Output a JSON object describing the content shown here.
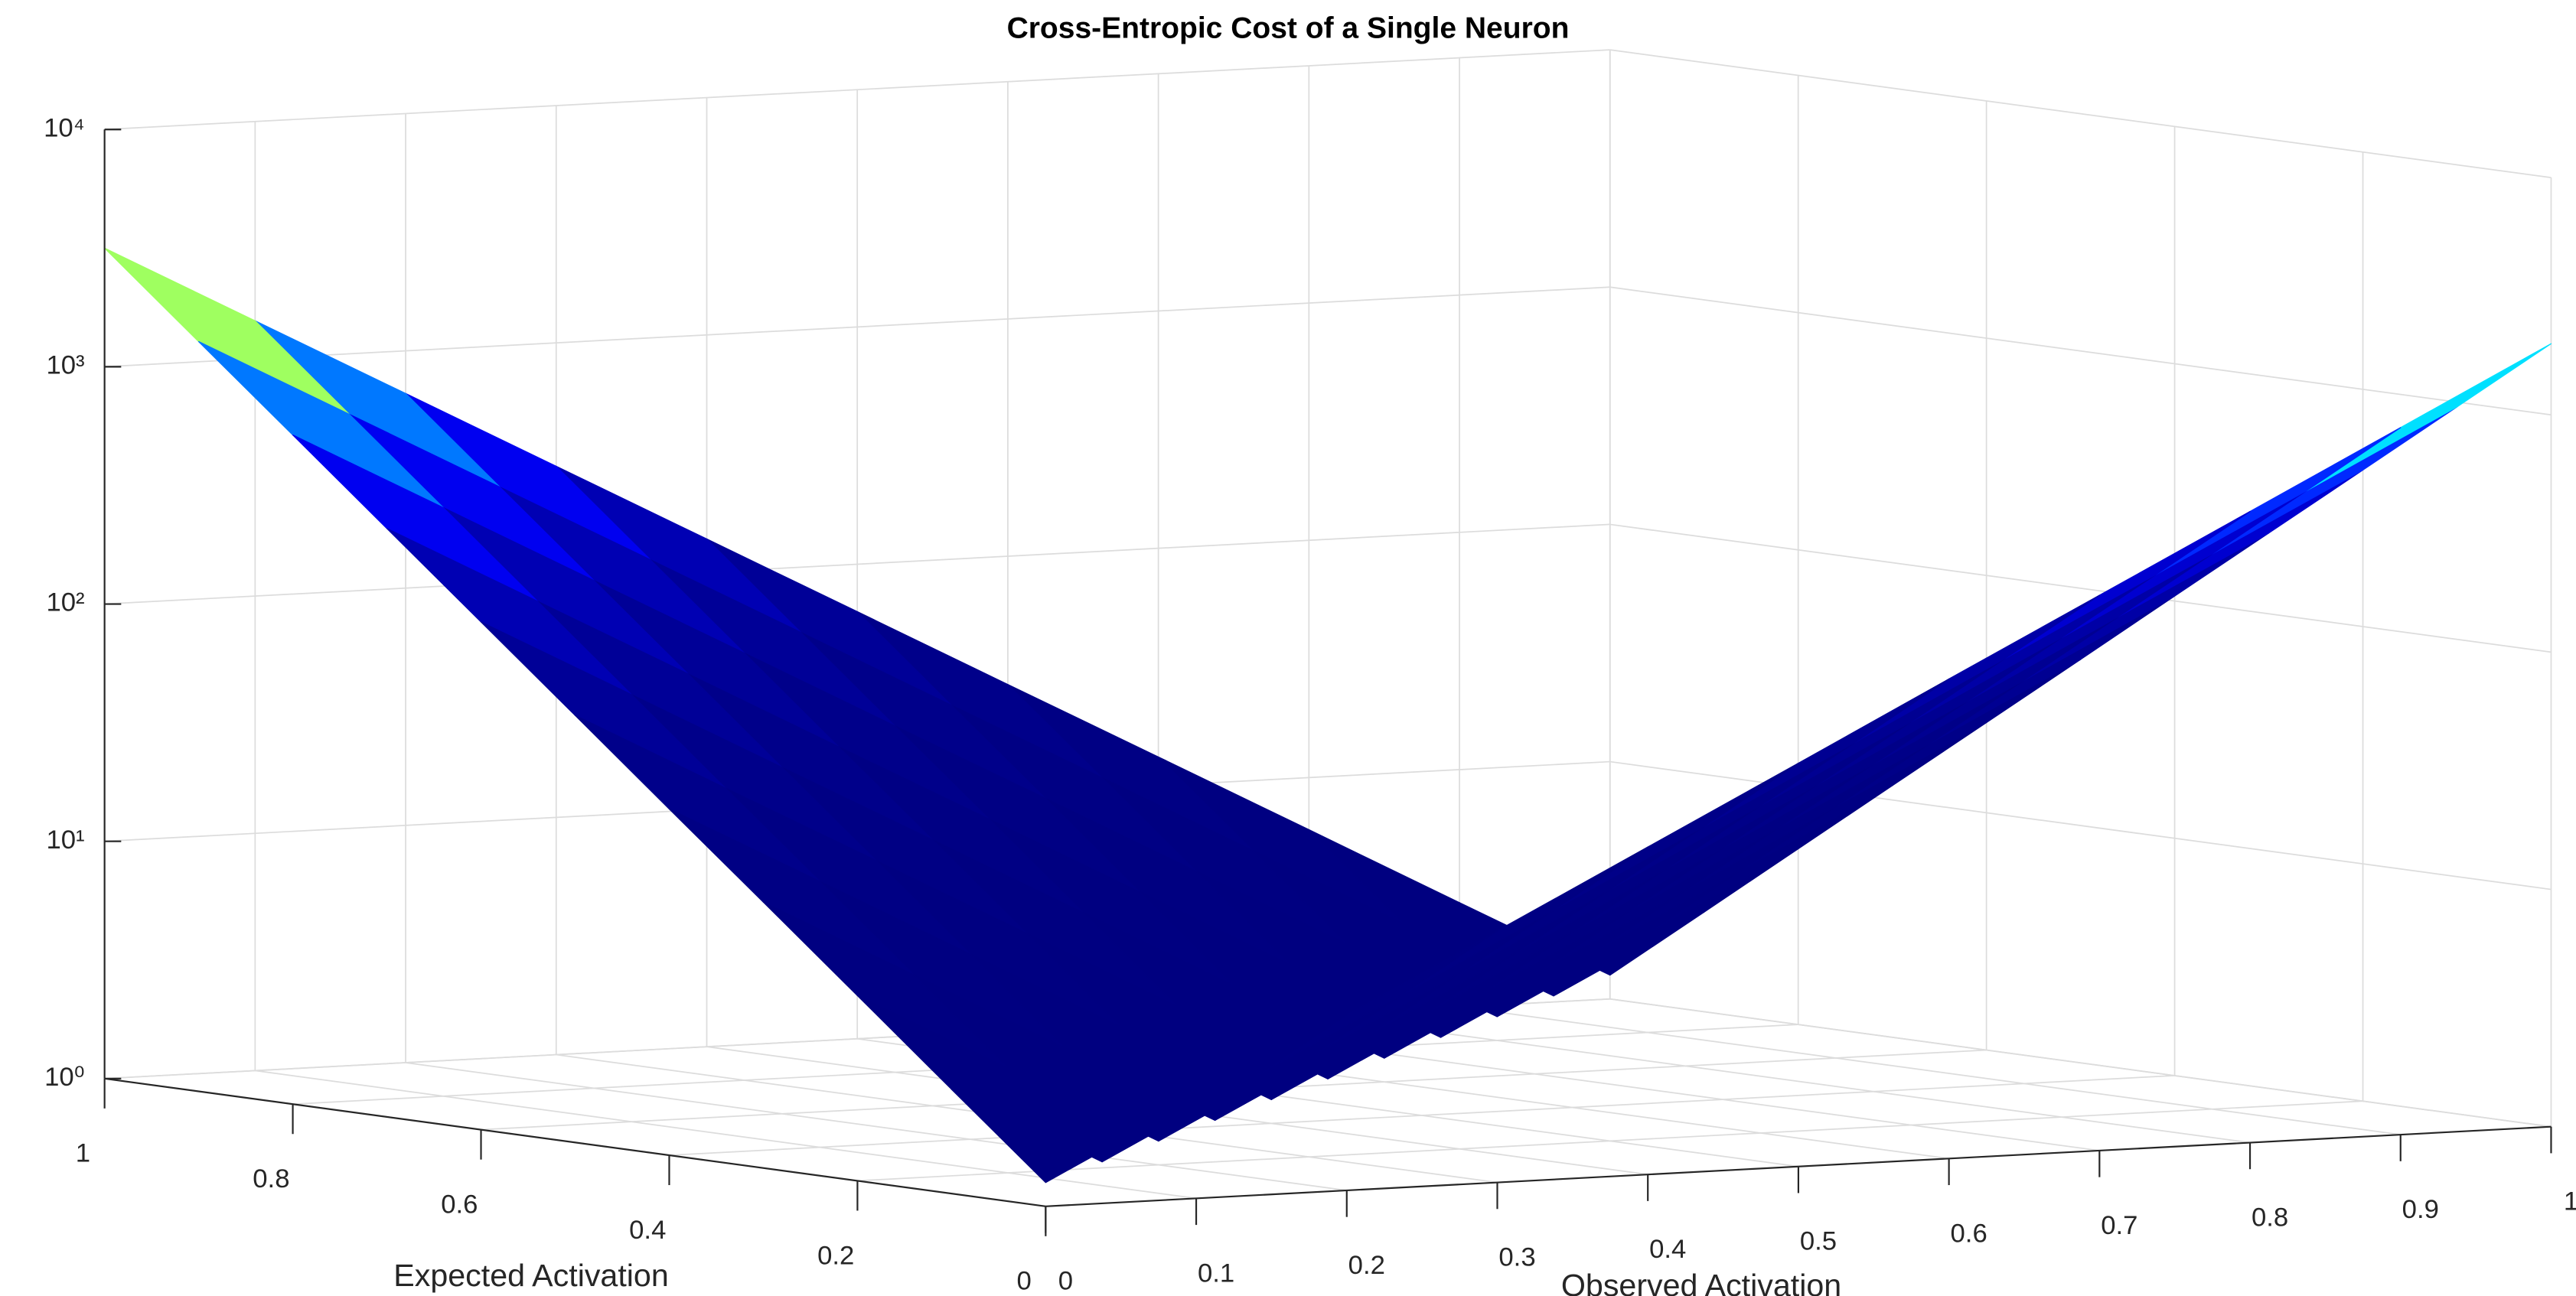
{
  "chart_data": {
    "type": "surface",
    "title": "Cross-Entropic Cost of a Single Neuron",
    "xlabel": "Observed Activation",
    "ylabel": "Expected Activation",
    "x": [
      0,
      0.1,
      0.2,
      0.3,
      0.4,
      0.5,
      0.6,
      0.7,
      0.8,
      0.9,
      1
    ],
    "y": [
      0,
      0.1,
      0.2,
      0.3,
      0.4,
      0.5,
      0.6,
      0.7,
      0.8,
      0.9,
      1
    ],
    "z": [
      [
        1.26,
        2.63,
        5.5,
        11.5,
        24,
        50.1,
        105,
        219,
        457,
        955,
        1995
      ],
      [
        2.75,
        1.26,
        2.63,
        5.5,
        11.5,
        24,
        50.1,
        105,
        219,
        457,
        955
      ],
      [
        6.03,
        2.75,
        1.26,
        2.63,
        5.5,
        11.5,
        24,
        50.1,
        105,
        219,
        457
      ],
      [
        13.2,
        6.03,
        2.75,
        1.26,
        2.63,
        5.5,
        11.5,
        24,
        50.1,
        105,
        219
      ],
      [
        28.8,
        13.2,
        6.03,
        2.75,
        1.26,
        2.63,
        5.5,
        11.5,
        24,
        50.1,
        105
      ],
      [
        63.1,
        28.8,
        13.2,
        6.03,
        2.75,
        1.26,
        2.63,
        5.5,
        11.5,
        24,
        50.1
      ],
      [
        138,
        63.1,
        28.8,
        13.2,
        6.03,
        2.75,
        1.26,
        2.63,
        5.5,
        11.5,
        24
      ],
      [
        302,
        138,
        63.1,
        28.8,
        13.2,
        6.03,
        2.75,
        1.26,
        2.63,
        5.5,
        11.5
      ],
      [
        661,
        302,
        138,
        63.1,
        28.8,
        13.2,
        6.03,
        2.75,
        1.26,
        2.63,
        5.5
      ],
      [
        1445,
        661,
        302,
        138,
        63.1,
        28.8,
        13.2,
        6.03,
        2.75,
        1.26,
        2.63
      ],
      [
        3162,
        1445,
        661,
        302,
        138,
        63.1,
        28.8,
        13.2,
        6.03,
        2.75,
        1.26
      ]
    ],
    "xlim": [
      0,
      1
    ],
    "ylim": [
      0,
      1
    ],
    "zlim": [
      1,
      10000
    ],
    "zscale": "log",
    "xticks": [
      0,
      0.1,
      0.2,
      0.3,
      0.4,
      0.5,
      0.6,
      0.7,
      0.8,
      0.9,
      1
    ],
    "yticks": [
      0,
      0.2,
      0.4,
      0.6,
      0.8,
      1
    ],
    "zticks": [
      {
        "value": 1,
        "label": "10⁰"
      },
      {
        "value": 10,
        "label": "10¹"
      },
      {
        "value": 100,
        "label": "10²"
      },
      {
        "value": 1000,
        "label": "10³"
      },
      {
        "value": 10000,
        "label": "10⁴"
      }
    ],
    "colormap": "jet",
    "grid": true
  }
}
